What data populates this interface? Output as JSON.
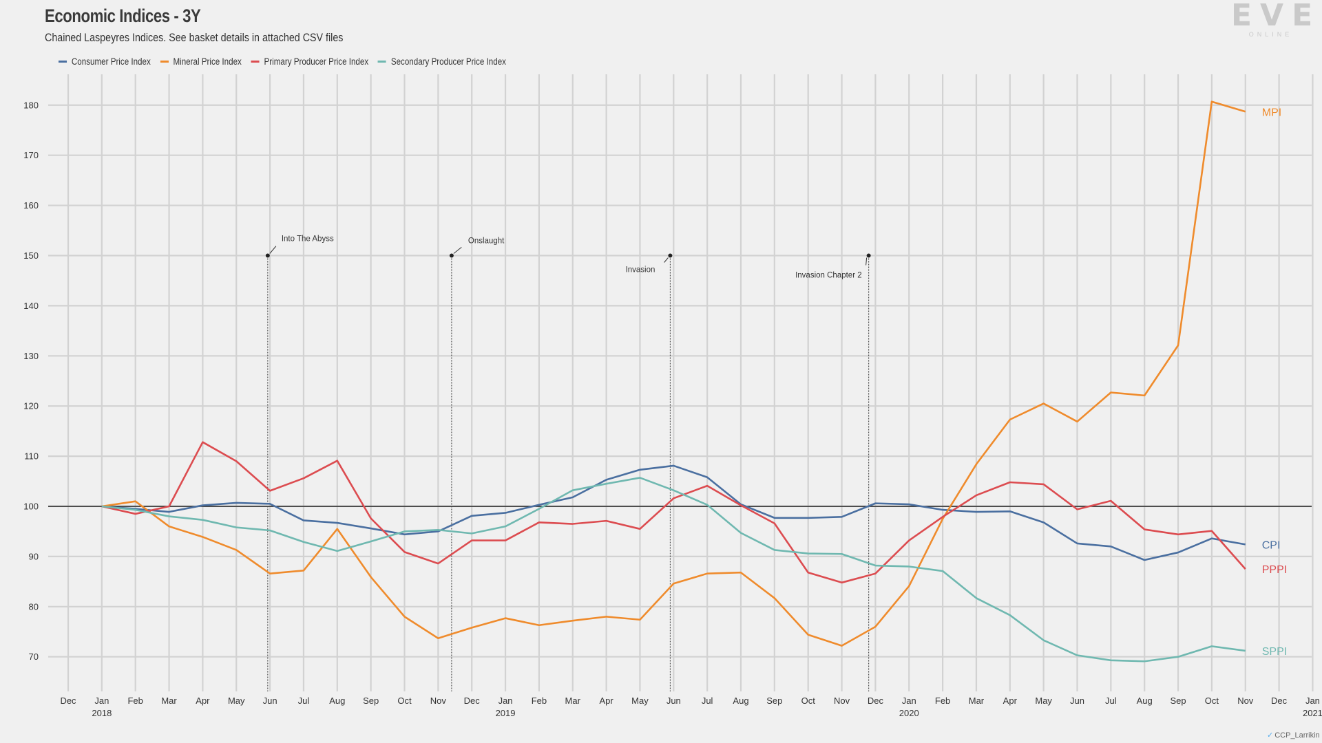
{
  "header": {
    "title": "Economic Indices - 3Y",
    "subtitle": "Chained Laspeyres Indices. See basket details in attached CSV files"
  },
  "logo": {
    "main": "EVE",
    "sub": "ONLINE"
  },
  "credit": {
    "icon": "twitter-icon",
    "text": "CCP_Larrikin"
  },
  "chart_data": {
    "type": "line",
    "title": "Economic Indices - 3Y",
    "subtitle": "Chained Laspeyres Indices. See basket details in attached CSV files",
    "xlabel": "",
    "ylabel": "",
    "ylim": [
      64,
      186
    ],
    "yticks": [
      70,
      80,
      90,
      100,
      110,
      120,
      130,
      140,
      150,
      160,
      170,
      180
    ],
    "xlim": [
      "2017-12",
      "2021-01"
    ],
    "x_tick_labels": [
      {
        "month": "Dec",
        "year": ""
      },
      {
        "month": "Jan",
        "year": "2018"
      },
      {
        "month": "Feb",
        "year": ""
      },
      {
        "month": "Mar",
        "year": ""
      },
      {
        "month": "Apr",
        "year": ""
      },
      {
        "month": "May",
        "year": ""
      },
      {
        "month": "Jun",
        "year": ""
      },
      {
        "month": "Jul",
        "year": ""
      },
      {
        "month": "Aug",
        "year": ""
      },
      {
        "month": "Sep",
        "year": ""
      },
      {
        "month": "Oct",
        "year": ""
      },
      {
        "month": "Nov",
        "year": ""
      },
      {
        "month": "Dec",
        "year": ""
      },
      {
        "month": "Jan",
        "year": "2019"
      },
      {
        "month": "Feb",
        "year": ""
      },
      {
        "month": "Mar",
        "year": ""
      },
      {
        "month": "Apr",
        "year": ""
      },
      {
        "month": "May",
        "year": ""
      },
      {
        "month": "Jun",
        "year": ""
      },
      {
        "month": "Jul",
        "year": ""
      },
      {
        "month": "Aug",
        "year": ""
      },
      {
        "month": "Sep",
        "year": ""
      },
      {
        "month": "Oct",
        "year": ""
      },
      {
        "month": "Nov",
        "year": ""
      },
      {
        "month": "Dec",
        "year": ""
      },
      {
        "month": "Jan",
        "year": "2020"
      },
      {
        "month": "Feb",
        "year": ""
      },
      {
        "month": "Mar",
        "year": ""
      },
      {
        "month": "Apr",
        "year": ""
      },
      {
        "month": "May",
        "year": ""
      },
      {
        "month": "Jun",
        "year": ""
      },
      {
        "month": "Jul",
        "year": ""
      },
      {
        "month": "Aug",
        "year": ""
      },
      {
        "month": "Sep",
        "year": ""
      },
      {
        "month": "Oct",
        "year": ""
      },
      {
        "month": "Nov",
        "year": ""
      },
      {
        "month": "Dec",
        "year": ""
      },
      {
        "month": "Jan",
        "year": "2021"
      }
    ],
    "x": [
      "2018-01",
      "2018-02",
      "2018-03",
      "2018-04",
      "2018-05",
      "2018-06",
      "2018-07",
      "2018-08",
      "2018-09",
      "2018-10",
      "2018-11",
      "2018-12",
      "2019-01",
      "2019-02",
      "2019-03",
      "2019-04",
      "2019-05",
      "2019-06",
      "2019-07",
      "2019-08",
      "2019-09",
      "2019-10",
      "2019-11",
      "2019-12",
      "2020-01",
      "2020-02",
      "2020-03",
      "2020-04",
      "2020-05",
      "2020-06",
      "2020-07",
      "2020-08",
      "2020-09",
      "2020-10",
      "2020-11"
    ],
    "reference_line": 100,
    "grid": true,
    "legend_position": "top-left",
    "series": [
      {
        "name": "Consumer Price Index",
        "end_label": "CPI",
        "color": "#4a6fa0",
        "values": [
          100,
          99.5,
          98.9,
          100.2,
          100.7,
          100.5,
          97.2,
          96.7,
          95.6,
          94.4,
          95.0,
          98.1,
          98.7,
          100.3,
          101.8,
          105.3,
          107.3,
          108.1,
          105.8,
          100.4,
          97.7,
          97.7,
          97.9,
          100.6,
          100.4,
          99.3,
          98.9,
          99.0,
          96.8,
          92.6,
          92.0,
          89.3,
          90.8,
          93.6,
          92.4
        ]
      },
      {
        "name": "Mineral Price Index",
        "end_label": "MPI",
        "color": "#ef8b2c",
        "values": [
          100,
          101.0,
          96.0,
          93.9,
          91.3,
          86.6,
          87.2,
          95.5,
          85.9,
          78.0,
          73.7,
          75.8,
          77.7,
          76.3,
          77.2,
          78.0,
          77.4,
          84.6,
          86.6,
          86.8,
          81.7,
          74.4,
          72.2,
          76.0,
          84.1,
          97.5,
          108.4,
          117.3,
          120.5,
          116.9,
          122.7,
          122.1,
          132.1,
          180.7,
          178.7
        ]
      },
      {
        "name": "Primary Producer Price Index",
        "end_label": "PPPI",
        "color": "#dc4c50",
        "values": [
          100,
          98.5,
          100.0,
          112.8,
          109.0,
          103.1,
          105.6,
          109.1,
          97.6,
          90.9,
          88.6,
          93.2,
          93.2,
          96.8,
          96.5,
          97.1,
          95.5,
          101.6,
          104.1,
          100.2,
          96.6,
          86.8,
          84.8,
          86.6,
          93.2,
          97.9,
          102.2,
          104.8,
          104.4,
          99.4,
          101.1,
          95.4,
          94.4,
          95.1,
          87.5
        ]
      },
      {
        "name": "Secondary Producer Price Index",
        "end_label": "SPPI",
        "color": "#6fb8b0",
        "values": [
          100,
          99.3,
          98.0,
          97.3,
          95.8,
          95.2,
          92.9,
          91.1,
          93.0,
          95.0,
          95.3,
          94.6,
          96.0,
          99.5,
          103.2,
          104.5,
          105.7,
          103.2,
          100.3,
          94.7,
          91.3,
          90.6,
          90.5,
          88.2,
          88.0,
          87.1,
          81.7,
          78.3,
          73.3,
          70.3,
          69.3,
          69.1,
          70.0,
          72.1,
          71.2
        ]
      }
    ],
    "annotations": [
      {
        "label": "Into The Abyss",
        "date": "2018-05-29",
        "y": 150
      },
      {
        "label": "Onslaught",
        "date": "2018-11-13",
        "y": 150
      },
      {
        "label": "Invasion",
        "date": "2019-05-28",
        "y": 150
      },
      {
        "label": "Invasion Chapter 2",
        "date": "2019-11-25",
        "y": 150
      }
    ]
  }
}
